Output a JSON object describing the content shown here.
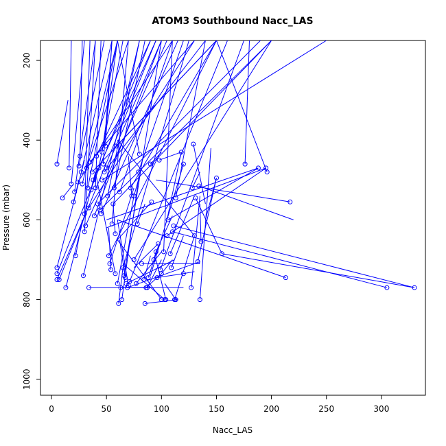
{
  "chart_data": {
    "type": "scatter",
    "title": "ATOM3 Southbound Nacc_LAS",
    "xlabel": "Nacc_LAS",
    "ylabel": "Pressure (mbar)",
    "xlim": [
      -10,
      340
    ],
    "ylim": [
      1040,
      150
    ],
    "y_reversed": true,
    "x_ticks": [
      "0",
      "50",
      "100",
      "150",
      "200",
      "250",
      "300"
    ],
    "y_ticks": [
      "200",
      "400",
      "600",
      "800",
      "1000"
    ],
    "grid": false,
    "legend": "none",
    "color": "#0000ff",
    "points": [
      [
        5,
        460
      ],
      [
        5,
        720
      ],
      [
        5,
        735
      ],
      [
        5,
        750
      ],
      [
        7,
        750
      ],
      [
        10,
        545
      ],
      [
        13,
        770
      ],
      [
        16,
        470
      ],
      [
        18,
        510
      ],
      [
        20,
        555
      ],
      [
        21,
        530
      ],
      [
        22,
        690
      ],
      [
        24,
        505
      ],
      [
        25,
        465
      ],
      [
        26,
        440
      ],
      [
        27,
        480
      ],
      [
        28,
        510
      ],
      [
        29,
        740
      ],
      [
        30,
        630
      ],
      [
        30,
        585
      ],
      [
        31,
        615
      ],
      [
        32,
        470
      ],
      [
        33,
        520
      ],
      [
        34,
        570
      ],
      [
        34,
        770
      ],
      [
        35,
        455
      ],
      [
        36,
        525
      ],
      [
        37,
        480
      ],
      [
        38,
        500
      ],
      [
        39,
        590
      ],
      [
        40,
        520
      ],
      [
        41,
        440
      ],
      [
        42,
        560
      ],
      [
        43,
        470
      ],
      [
        44,
        575
      ],
      [
        45,
        585
      ],
      [
        46,
        500
      ],
      [
        46,
        430
      ],
      [
        47,
        460
      ],
      [
        48,
        480
      ],
      [
        49,
        415
      ],
      [
        50,
        470
      ],
      [
        51,
        540
      ],
      [
        52,
        690
      ],
      [
        53,
        710
      ],
      [
        54,
        725
      ],
      [
        55,
        610
      ],
      [
        56,
        560
      ],
      [
        57,
        520
      ],
      [
        58,
        735
      ],
      [
        58,
        635
      ],
      [
        59,
        415
      ],
      [
        60,
        760
      ],
      [
        61,
        810
      ],
      [
        62,
        530
      ],
      [
        63,
        770
      ],
      [
        64,
        800
      ],
      [
        65,
        720
      ],
      [
        66,
        740
      ],
      [
        67,
        745
      ],
      [
        68,
        760
      ],
      [
        69,
        770
      ],
      [
        70,
        765
      ],
      [
        71,
        755
      ],
      [
        72,
        520
      ],
      [
        73,
        540
      ],
      [
        75,
        700
      ],
      [
        75,
        540
      ],
      [
        77,
        760
      ],
      [
        78,
        610
      ],
      [
        79,
        480
      ],
      [
        80,
        435
      ],
      [
        82,
        710
      ],
      [
        84,
        750
      ],
      [
        85,
        810
      ],
      [
        86,
        770
      ],
      [
        87,
        770
      ],
      [
        88,
        745
      ],
      [
        90,
        460
      ],
      [
        91,
        555
      ],
      [
        93,
        700
      ],
      [
        95,
        680
      ],
      [
        96,
        745
      ],
      [
        97,
        660
      ],
      [
        98,
        450
      ],
      [
        99,
        725
      ],
      [
        100,
        735
      ],
      [
        100,
        800
      ],
      [
        102,
        680
      ],
      [
        103,
        800
      ],
      [
        104,
        800
      ],
      [
        105,
        640
      ],
      [
        106,
        600
      ],
      [
        108,
        685
      ],
      [
        109,
        720
      ],
      [
        110,
        630
      ],
      [
        111,
        615
      ],
      [
        112,
        800
      ],
      [
        113,
        545
      ],
      [
        113,
        800
      ],
      [
        118,
        430
      ],
      [
        120,
        460
      ],
      [
        120,
        735
      ],
      [
        127,
        770
      ],
      [
        128,
        520
      ],
      [
        129,
        410
      ],
      [
        130,
        640
      ],
      [
        131,
        545
      ],
      [
        133,
        705
      ],
      [
        134,
        515
      ],
      [
        135,
        800
      ],
      [
        136,
        655
      ],
      [
        150,
        495
      ],
      [
        155,
        685
      ],
      [
        176,
        460
      ],
      [
        188,
        470
      ],
      [
        195,
        470
      ],
      [
        196,
        480
      ],
      [
        213,
        745
      ],
      [
        217,
        555
      ],
      [
        305,
        770
      ],
      [
        330,
        770
      ]
    ],
    "segments": [
      [
        5,
        460,
        15,
        300
      ],
      [
        5,
        720,
        30,
        450
      ],
      [
        5,
        735,
        90,
        150
      ],
      [
        5,
        750,
        35,
        560
      ],
      [
        7,
        750,
        95,
        150
      ],
      [
        10,
        545,
        20,
        510
      ],
      [
        13,
        770,
        40,
        480
      ],
      [
        16,
        470,
        18,
        150
      ],
      [
        18,
        510,
        30,
        150
      ],
      [
        20,
        555,
        25,
        500
      ],
      [
        21,
        530,
        40,
        150
      ],
      [
        22,
        690,
        28,
        600
      ],
      [
        24,
        505,
        110,
        150
      ],
      [
        25,
        465,
        48,
        150
      ],
      [
        26,
        440,
        28,
        150
      ],
      [
        27,
        480,
        55,
        150
      ],
      [
        28,
        510,
        60,
        150
      ],
      [
        29,
        740,
        80,
        150
      ],
      [
        30,
        630,
        40,
        150
      ],
      [
        30,
        585,
        35,
        150
      ],
      [
        31,
        615,
        105,
        150
      ],
      [
        32,
        470,
        70,
        150
      ],
      [
        33,
        520,
        60,
        150
      ],
      [
        34,
        570,
        130,
        150
      ],
      [
        34,
        770,
        120,
        770
      ],
      [
        35,
        455,
        130,
        150
      ],
      [
        36,
        525,
        42,
        470
      ],
      [
        37,
        480,
        150,
        150
      ],
      [
        38,
        500,
        95,
        150
      ],
      [
        39,
        590,
        100,
        150
      ],
      [
        40,
        520,
        45,
        150
      ],
      [
        41,
        440,
        90,
        150
      ],
      [
        42,
        560,
        190,
        150
      ],
      [
        43,
        470,
        65,
        150
      ],
      [
        44,
        575,
        200,
        150
      ],
      [
        45,
        585,
        115,
        150
      ],
      [
        46,
        500,
        250,
        150
      ],
      [
        46,
        430,
        60,
        150
      ],
      [
        47,
        460,
        55,
        150
      ],
      [
        48,
        480,
        140,
        150
      ],
      [
        49,
        415,
        55,
        150
      ],
      [
        50,
        470,
        100,
        150
      ],
      [
        51,
        540,
        80,
        150
      ],
      [
        52,
        690,
        150,
        150
      ],
      [
        53,
        710,
        75,
        520
      ],
      [
        54,
        725,
        52,
        620
      ],
      [
        55,
        610,
        70,
        150
      ],
      [
        56,
        560,
        200,
        150
      ],
      [
        57,
        520,
        85,
        150
      ],
      [
        58,
        735,
        40,
        480
      ],
      [
        58,
        635,
        56,
        560
      ],
      [
        59,
        415,
        150,
        150
      ],
      [
        60,
        760,
        75,
        540
      ],
      [
        61,
        810,
        65,
        720
      ],
      [
        62,
        530,
        110,
        150
      ],
      [
        63,
        770,
        90,
        770
      ],
      [
        64,
        800,
        80,
        480
      ],
      [
        65,
        720,
        125,
        150
      ],
      [
        66,
        740,
        100,
        150
      ],
      [
        67,
        745,
        62,
        650
      ],
      [
        68,
        760,
        112,
        700
      ],
      [
        69,
        770,
        135,
        705
      ],
      [
        70,
        765,
        60,
        600
      ],
      [
        71,
        755,
        160,
        150
      ],
      [
        72,
        520,
        150,
        150
      ],
      [
        73,
        540,
        70,
        440
      ],
      [
        75,
        700,
        200,
        150
      ],
      [
        75,
        540,
        80,
        490
      ],
      [
        77,
        760,
        100,
        680
      ],
      [
        78,
        610,
        85,
        560
      ],
      [
        79,
        480,
        120,
        150
      ],
      [
        80,
        435,
        60,
        150
      ],
      [
        82,
        710,
        135,
        710
      ],
      [
        84,
        750,
        90,
        690
      ],
      [
        85,
        810,
        115,
        800
      ],
      [
        86,
        770,
        100,
        735
      ],
      [
        87,
        770,
        100,
        700
      ],
      [
        88,
        745,
        98,
        660
      ],
      [
        90,
        460,
        100,
        430
      ],
      [
        91,
        555,
        60,
        650
      ],
      [
        93,
        700,
        95,
        680
      ],
      [
        95,
        680,
        110,
        590
      ],
      [
        96,
        745,
        120,
        735
      ],
      [
        97,
        660,
        75,
        720
      ],
      [
        98,
        450,
        118,
        430
      ],
      [
        99,
        725,
        175,
        150
      ],
      [
        100,
        735,
        110,
        700
      ],
      [
        100,
        800,
        60,
        650
      ],
      [
        102,
        680,
        110,
        150
      ],
      [
        103,
        800,
        65,
        710
      ],
      [
        104,
        800,
        95,
        700
      ],
      [
        105,
        640,
        195,
        470
      ],
      [
        106,
        600,
        188,
        470
      ],
      [
        108,
        685,
        130,
        540
      ],
      [
        109,
        720,
        120,
        640
      ],
      [
        110,
        630,
        305,
        770
      ],
      [
        111,
        615,
        330,
        770
      ],
      [
        112,
        800,
        130,
        640
      ],
      [
        113,
        545,
        140,
        150
      ],
      [
        113,
        800,
        103,
        760
      ],
      [
        118,
        430,
        105,
        600
      ],
      [
        120,
        460,
        90,
        740
      ],
      [
        120,
        735,
        130,
        730
      ],
      [
        127,
        770,
        135,
        540
      ],
      [
        128,
        520,
        135,
        480
      ],
      [
        129,
        410,
        140,
        560
      ],
      [
        130,
        640,
        60,
        400
      ],
      [
        131,
        545,
        155,
        685
      ],
      [
        133,
        705,
        150,
        495
      ],
      [
        134,
        515,
        220,
        600
      ],
      [
        135,
        800,
        145,
        420
      ],
      [
        136,
        655,
        135,
        560
      ],
      [
        150,
        495,
        140,
        600
      ],
      [
        155,
        685,
        330,
        770
      ],
      [
        176,
        460,
        180,
        150
      ],
      [
        188,
        470,
        50,
        600
      ],
      [
        195,
        470,
        50,
        620
      ],
      [
        196,
        480,
        150,
        150
      ],
      [
        213,
        745,
        60,
        600
      ],
      [
        217,
        555,
        95,
        500
      ]
    ]
  }
}
